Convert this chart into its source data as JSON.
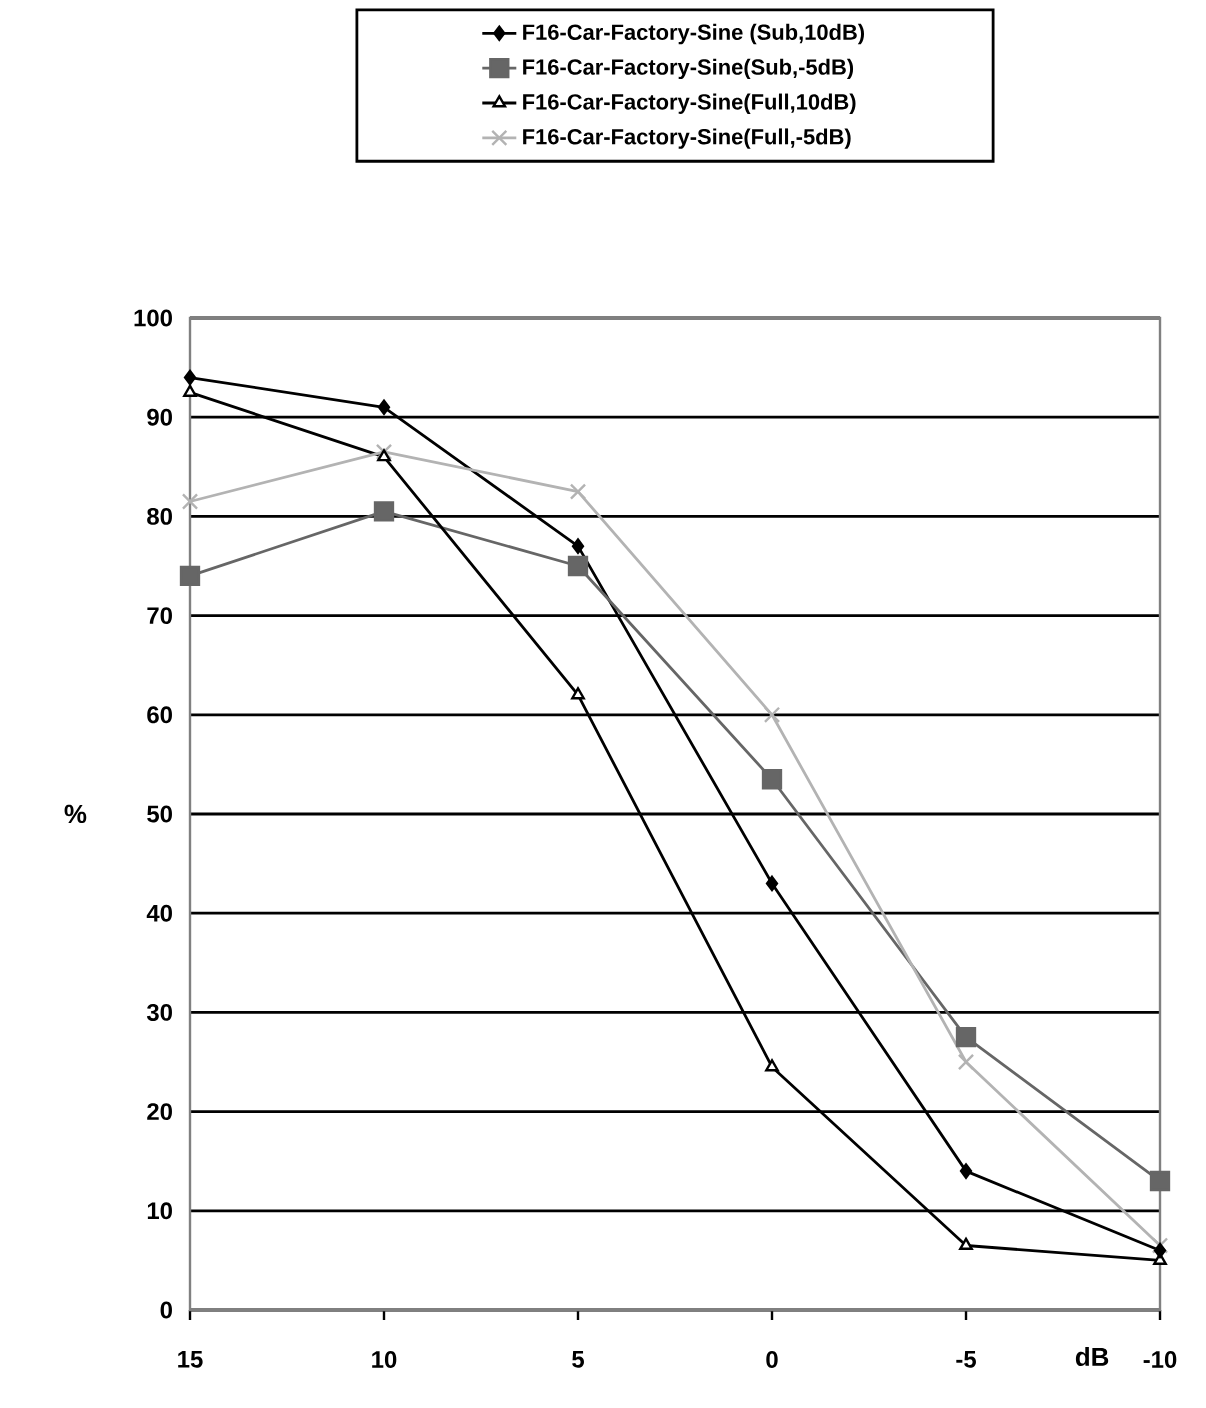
{
  "chart_data": {
    "type": "line",
    "xlabel": "dB",
    "ylabel": "%",
    "categories": [
      "15",
      "10",
      "5",
      "0",
      "-5",
      "-10"
    ],
    "series": [
      {
        "name": "F16-Car-Factory-Sine (Sub,10dB)",
        "color": "#000000",
        "marker": "diamond",
        "values": [
          94,
          91,
          77,
          43,
          14,
          6
        ]
      },
      {
        "name": "F16-Car-Factory-Sine(Sub,-5dB)",
        "color": "#666666",
        "marker": "square",
        "values": [
          74,
          80.5,
          75,
          53.5,
          27.5,
          13
        ]
      },
      {
        "name": "F16-Car-Factory-Sine(Full,10dB)",
        "color": "#000000",
        "marker": "triangle",
        "values": [
          92.5,
          86,
          62,
          24.5,
          6.5,
          5
        ]
      },
      {
        "name": "F16-Car-Factory-Sine(Full,-5dB)",
        "color": "#b3b3b3",
        "marker": "cross",
        "values": [
          81.5,
          86.5,
          82.5,
          60,
          25,
          6.5
        ]
      }
    ],
    "ylim": [
      0,
      100
    ],
    "yticks": [
      0,
      10,
      20,
      30,
      40,
      50,
      60,
      70,
      80,
      90,
      100
    ],
    "grid": "y",
    "legend": "top"
  }
}
